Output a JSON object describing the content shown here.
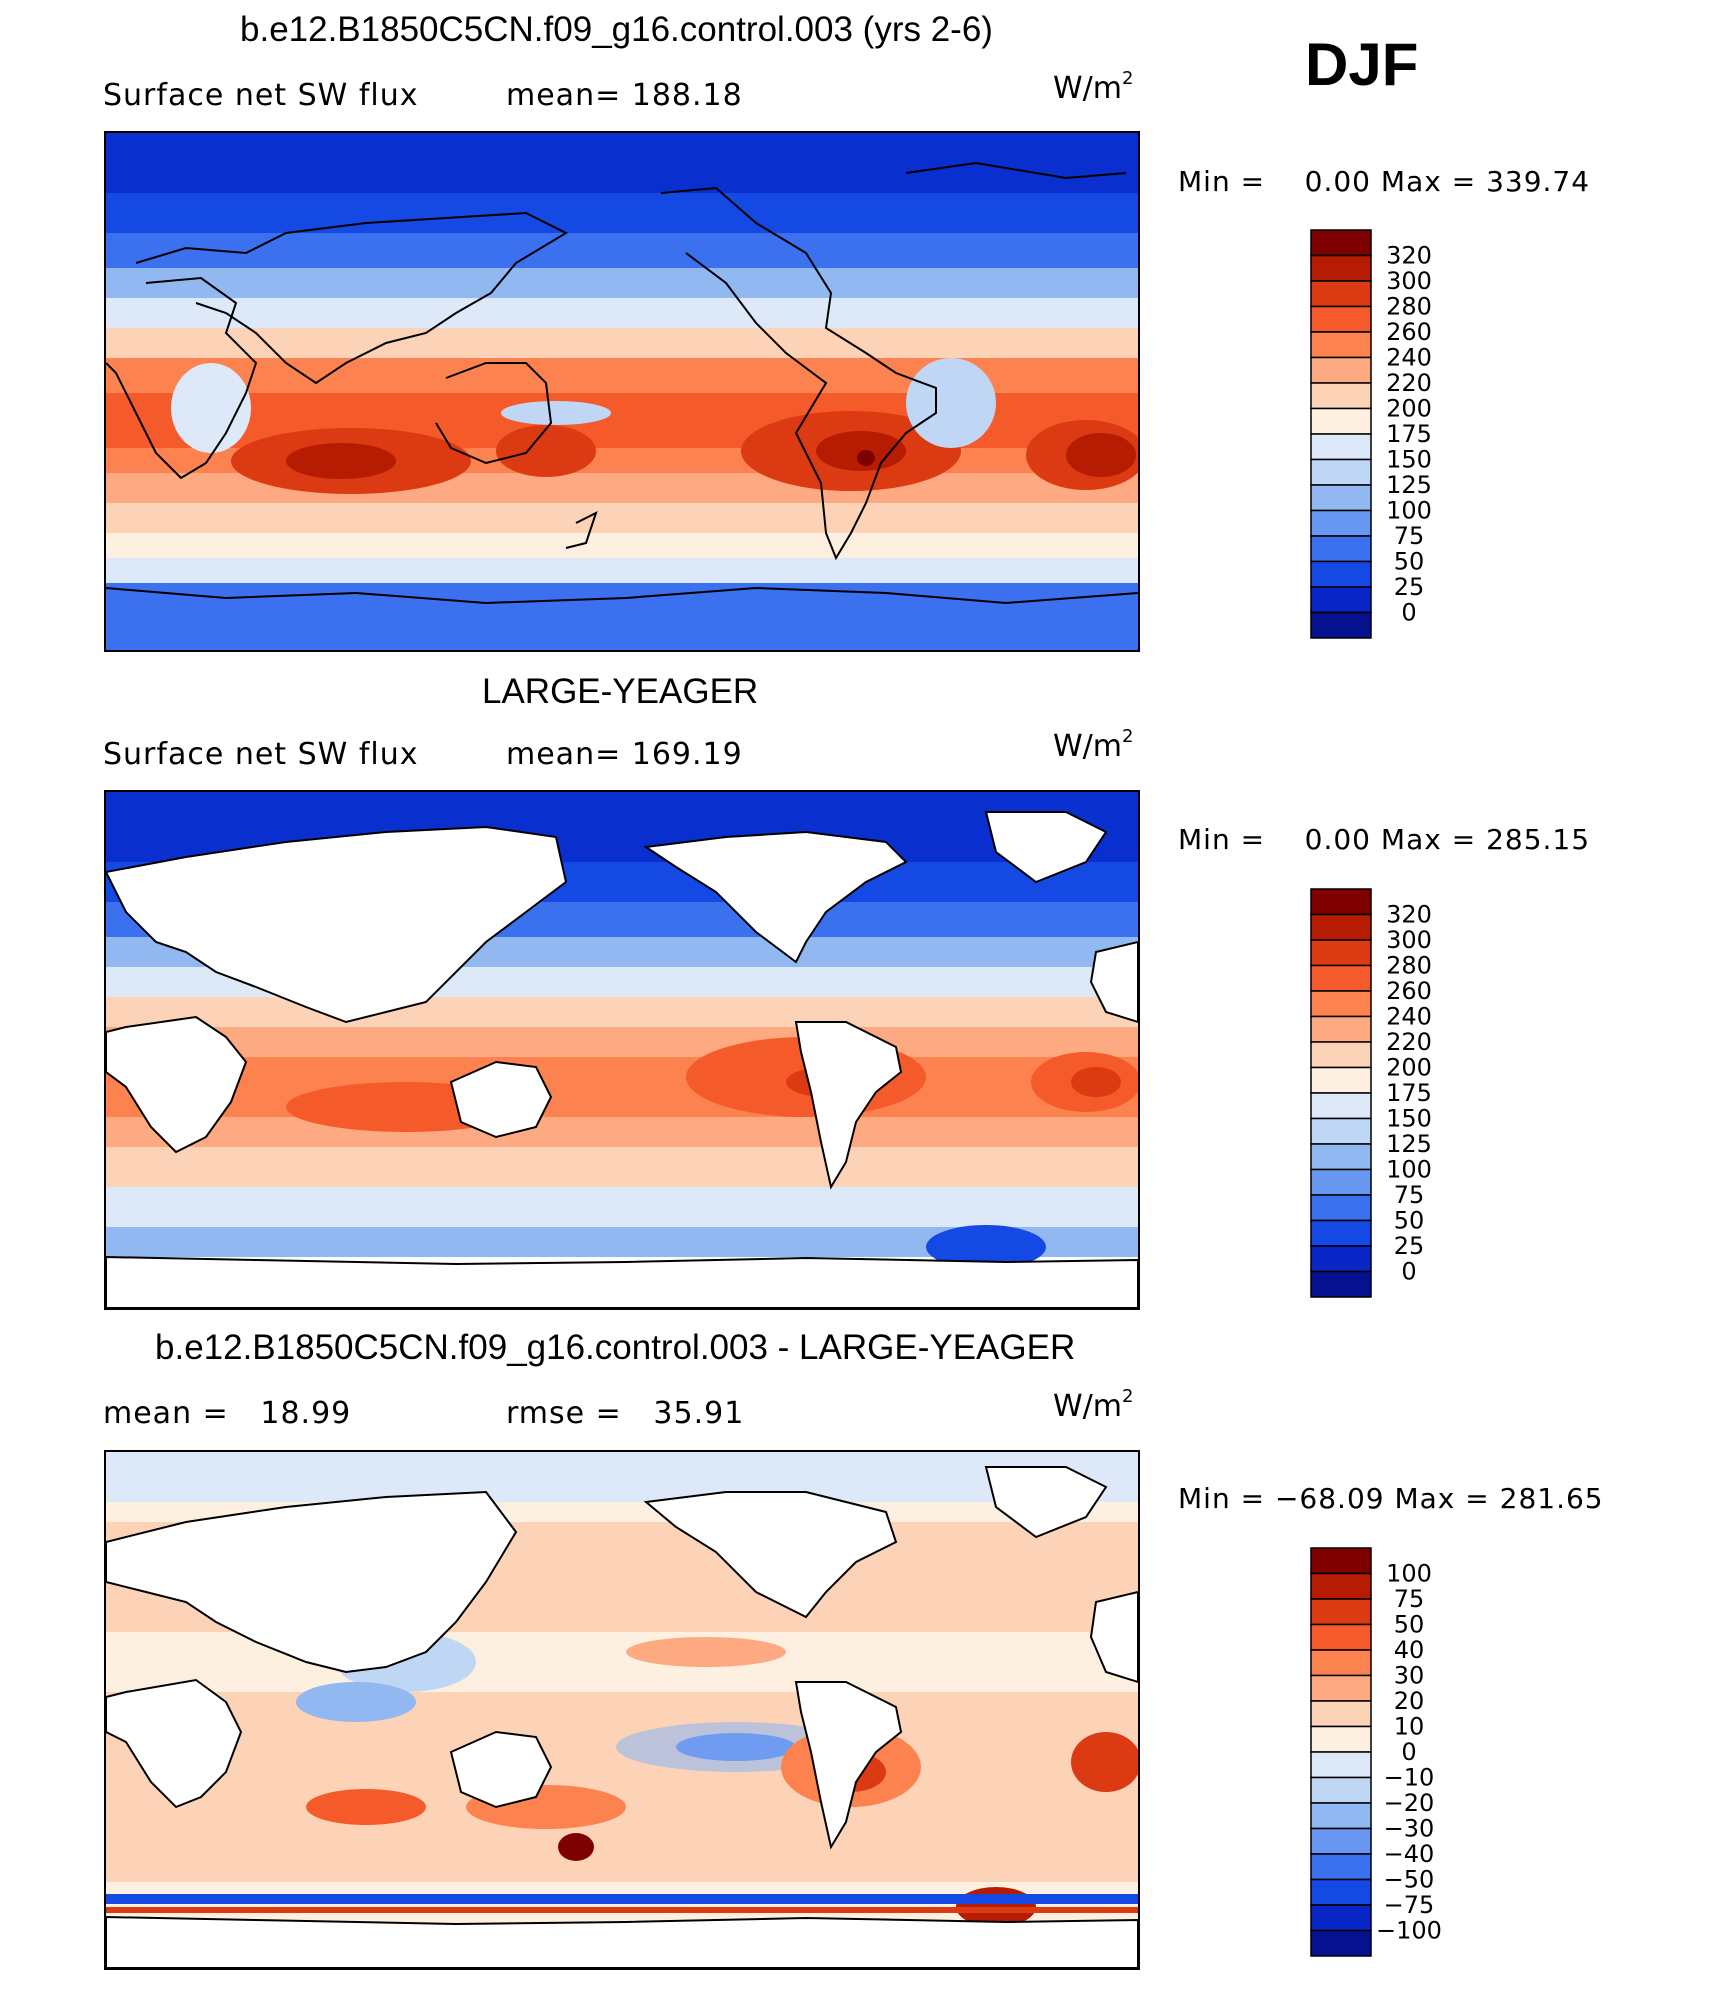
{
  "season": "DJF",
  "panels": [
    {
      "title": "b.e12.B1850C5CN.f09_g16.control.003 (yrs 2-6)",
      "left_text": "Surface net SW flux",
      "right_text": "mean=  188.18",
      "units_base": "W/m",
      "units_exp": "2",
      "min_label": "Min =",
      "min_value": "0.00",
      "max_label": "Max =",
      "max_value": "339.74",
      "legend_labels": [
        "320",
        "300",
        "280",
        "260",
        "240",
        "220",
        "200",
        "175",
        "150",
        "125",
        "100",
        "75",
        "50",
        "25",
        "0"
      ],
      "legend_colors": [
        "#7f0000",
        "#b51c02",
        "#dc3a12",
        "#f55a2a",
        "#fc8350",
        "#fdaa82",
        "#fdd3b8",
        "#fdf0e0",
        "#dde9f8",
        "#bfd6f4",
        "#92b8f1",
        "#6797f0",
        "#3b70ef",
        "#1549e3",
        "#0a26c7",
        "#06118f"
      ]
    },
    {
      "title": "LARGE-YEAGER",
      "left_text": "Surface net SW flux",
      "right_text": "mean=  169.19",
      "units_base": "W/m",
      "units_exp": "2",
      "min_label": "Min =",
      "min_value": "0.00",
      "max_label": "Max =",
      "max_value": "285.15",
      "legend_labels": [
        "320",
        "300",
        "280",
        "260",
        "240",
        "220",
        "200",
        "175",
        "150",
        "125",
        "100",
        "75",
        "50",
        "25",
        "0"
      ],
      "legend_colors": [
        "#7f0000",
        "#b51c02",
        "#dc3a12",
        "#f55a2a",
        "#fc8350",
        "#fdaa82",
        "#fdd3b8",
        "#fdf0e0",
        "#dde9f8",
        "#bfd6f4",
        "#92b8f1",
        "#6797f0",
        "#3b70ef",
        "#1549e3",
        "#0a26c7",
        "#06118f"
      ]
    },
    {
      "title": "b.e12.B1850C5CN.f09_g16.control.003 - LARGE-YEAGER",
      "left_text": "mean =   18.99",
      "right_text": "rmse =   35.91",
      "units_base": "W/m",
      "units_exp": "2",
      "min_label": "Min =",
      "min_value": "−68.09",
      "max_label": "Max =",
      "max_value": "281.65",
      "legend_labels": [
        "100",
        "75",
        "50",
        "40",
        "30",
        "20",
        "10",
        "0",
        "−10",
        "−20",
        "−30",
        "−40",
        "−50",
        "−75",
        "−100"
      ],
      "legend_colors": [
        "#7f0000",
        "#b51c02",
        "#dc3a12",
        "#f55a2a",
        "#fc8350",
        "#fdaa82",
        "#fdd3b8",
        "#fdf0e0",
        "#dde9f8",
        "#bfd6f4",
        "#92b8f1",
        "#6797f0",
        "#3b70ef",
        "#1549e3",
        "#0a26c7",
        "#06118f"
      ]
    }
  ]
}
